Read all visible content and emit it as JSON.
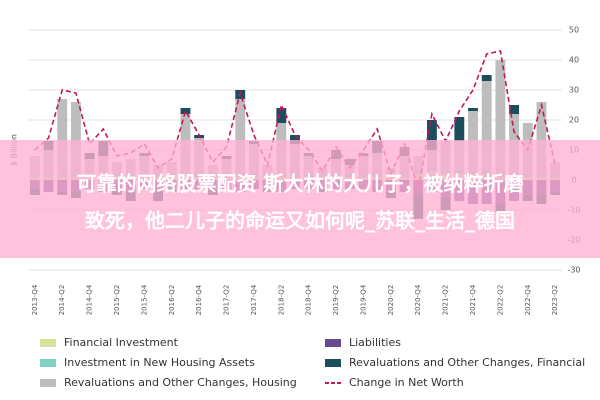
{
  "chart_data": {
    "type": "bar",
    "ylabel": "$ Billion",
    "categories": [
      "2013-Q4",
      null,
      "2014-Q2",
      null,
      "2014-Q4",
      null,
      "2015-Q2",
      null,
      "2015-Q4",
      null,
      "2016-Q2",
      null,
      "2016-Q4",
      null,
      "2017-Q2",
      null,
      "2017-Q4",
      null,
      "2018-Q2",
      null,
      "2018-Q4",
      null,
      "2019-Q2",
      null,
      "2019-Q4",
      null,
      "2020-Q2",
      null,
      "2020-Q4",
      null,
      "2021-Q2",
      null,
      "2021-Q4",
      null,
      "2022-Q2",
      null,
      "2022-Q4",
      null,
      "2023-Q2"
    ],
    "series": [
      {
        "name": "Financial Investment",
        "color": "#d3e39c",
        "values": [
          1,
          1,
          1,
          1,
          1,
          1,
          1,
          1,
          1,
          1,
          1,
          1,
          1,
          1,
          1,
          1,
          1,
          1,
          1,
          1,
          1,
          1,
          1,
          1,
          1,
          1,
          1,
          1,
          2,
          3,
          2,
          2,
          2,
          2,
          1,
          1,
          1,
          1,
          1
        ]
      },
      {
        "name": "Investment in New Housing Assets",
        "color": "#7fd0c6",
        "values": [
          1,
          1,
          1,
          1,
          1,
          1,
          1,
          1,
          1,
          1,
          1,
          1,
          1,
          1,
          1,
          1,
          1,
          1,
          1,
          1,
          1,
          1,
          1,
          1,
          1,
          1,
          1,
          1,
          1,
          1,
          1,
          1,
          1,
          1,
          1,
          1,
          1,
          1,
          1
        ]
      },
      {
        "name": "Revaluations and Other Changes, Housing",
        "color": "#bdbdbd",
        "values": [
          6,
          8,
          25,
          24,
          5,
          6,
          4,
          5,
          6,
          3,
          4,
          20,
          12,
          3,
          5,
          25,
          10,
          3,
          17,
          10,
          6,
          2,
          5,
          3,
          6,
          7,
          2,
          6,
          5,
          6,
          10,
          10,
          20,
          30,
          38,
          20,
          17,
          24,
          4
        ]
      },
      {
        "name": "Liabilities",
        "color": "#6b4a8b",
        "values": [
          -3,
          -4,
          -4,
          -4,
          -3,
          -4,
          -3,
          -4,
          -3,
          -3,
          -3,
          -3,
          -3,
          -3,
          -3,
          -4,
          -3,
          -3,
          -4,
          -3,
          -3,
          -3,
          -3,
          -3,
          -3,
          -4,
          -4,
          -4,
          -5,
          -4,
          -6,
          -7,
          -8,
          -8,
          -8,
          -7,
          -5,
          -5,
          -4
        ]
      },
      {
        "name": "Revaluations and Other Changes, Financial",
        "color": "#1c4d5c",
        "values": [
          -2,
          3,
          -1,
          -2,
          2,
          5,
          -2,
          -3,
          1,
          -4,
          -1,
          2,
          1,
          -2,
          1,
          3,
          1,
          -1,
          5,
          3,
          1,
          -1,
          3,
          2,
          1,
          4,
          -2,
          3,
          -8,
          10,
          -4,
          8,
          1,
          2,
          -3,
          3,
          -2,
          -3,
          -1
        ]
      },
      {
        "name": "Change in Net Worth",
        "color": "#c2185b",
        "line": true,
        "values": [
          10,
          14,
          30,
          29,
          12,
          17,
          8,
          9,
          12,
          4,
          7,
          23,
          15,
          6,
          11,
          29,
          15,
          5,
          25,
          15,
          10,
          3,
          11,
          4,
          10,
          17,
          2,
          12,
          -3,
          22,
          13,
          23,
          30,
          42,
          43,
          16,
          10,
          25,
          5
        ]
      }
    ],
    "ylim": [
      -30,
      50
    ],
    "yticks": [
      -30,
      -20,
      -10,
      0,
      10,
      20,
      30,
      40,
      50
    ],
    "grid": true
  },
  "overlay": {
    "lines": [
      "可靠的网络股票配资 斯大林的大儿子，被纳粹折磨",
      "致死，他二儿子的命运又如何呢_苏联_生活_德国"
    ]
  }
}
